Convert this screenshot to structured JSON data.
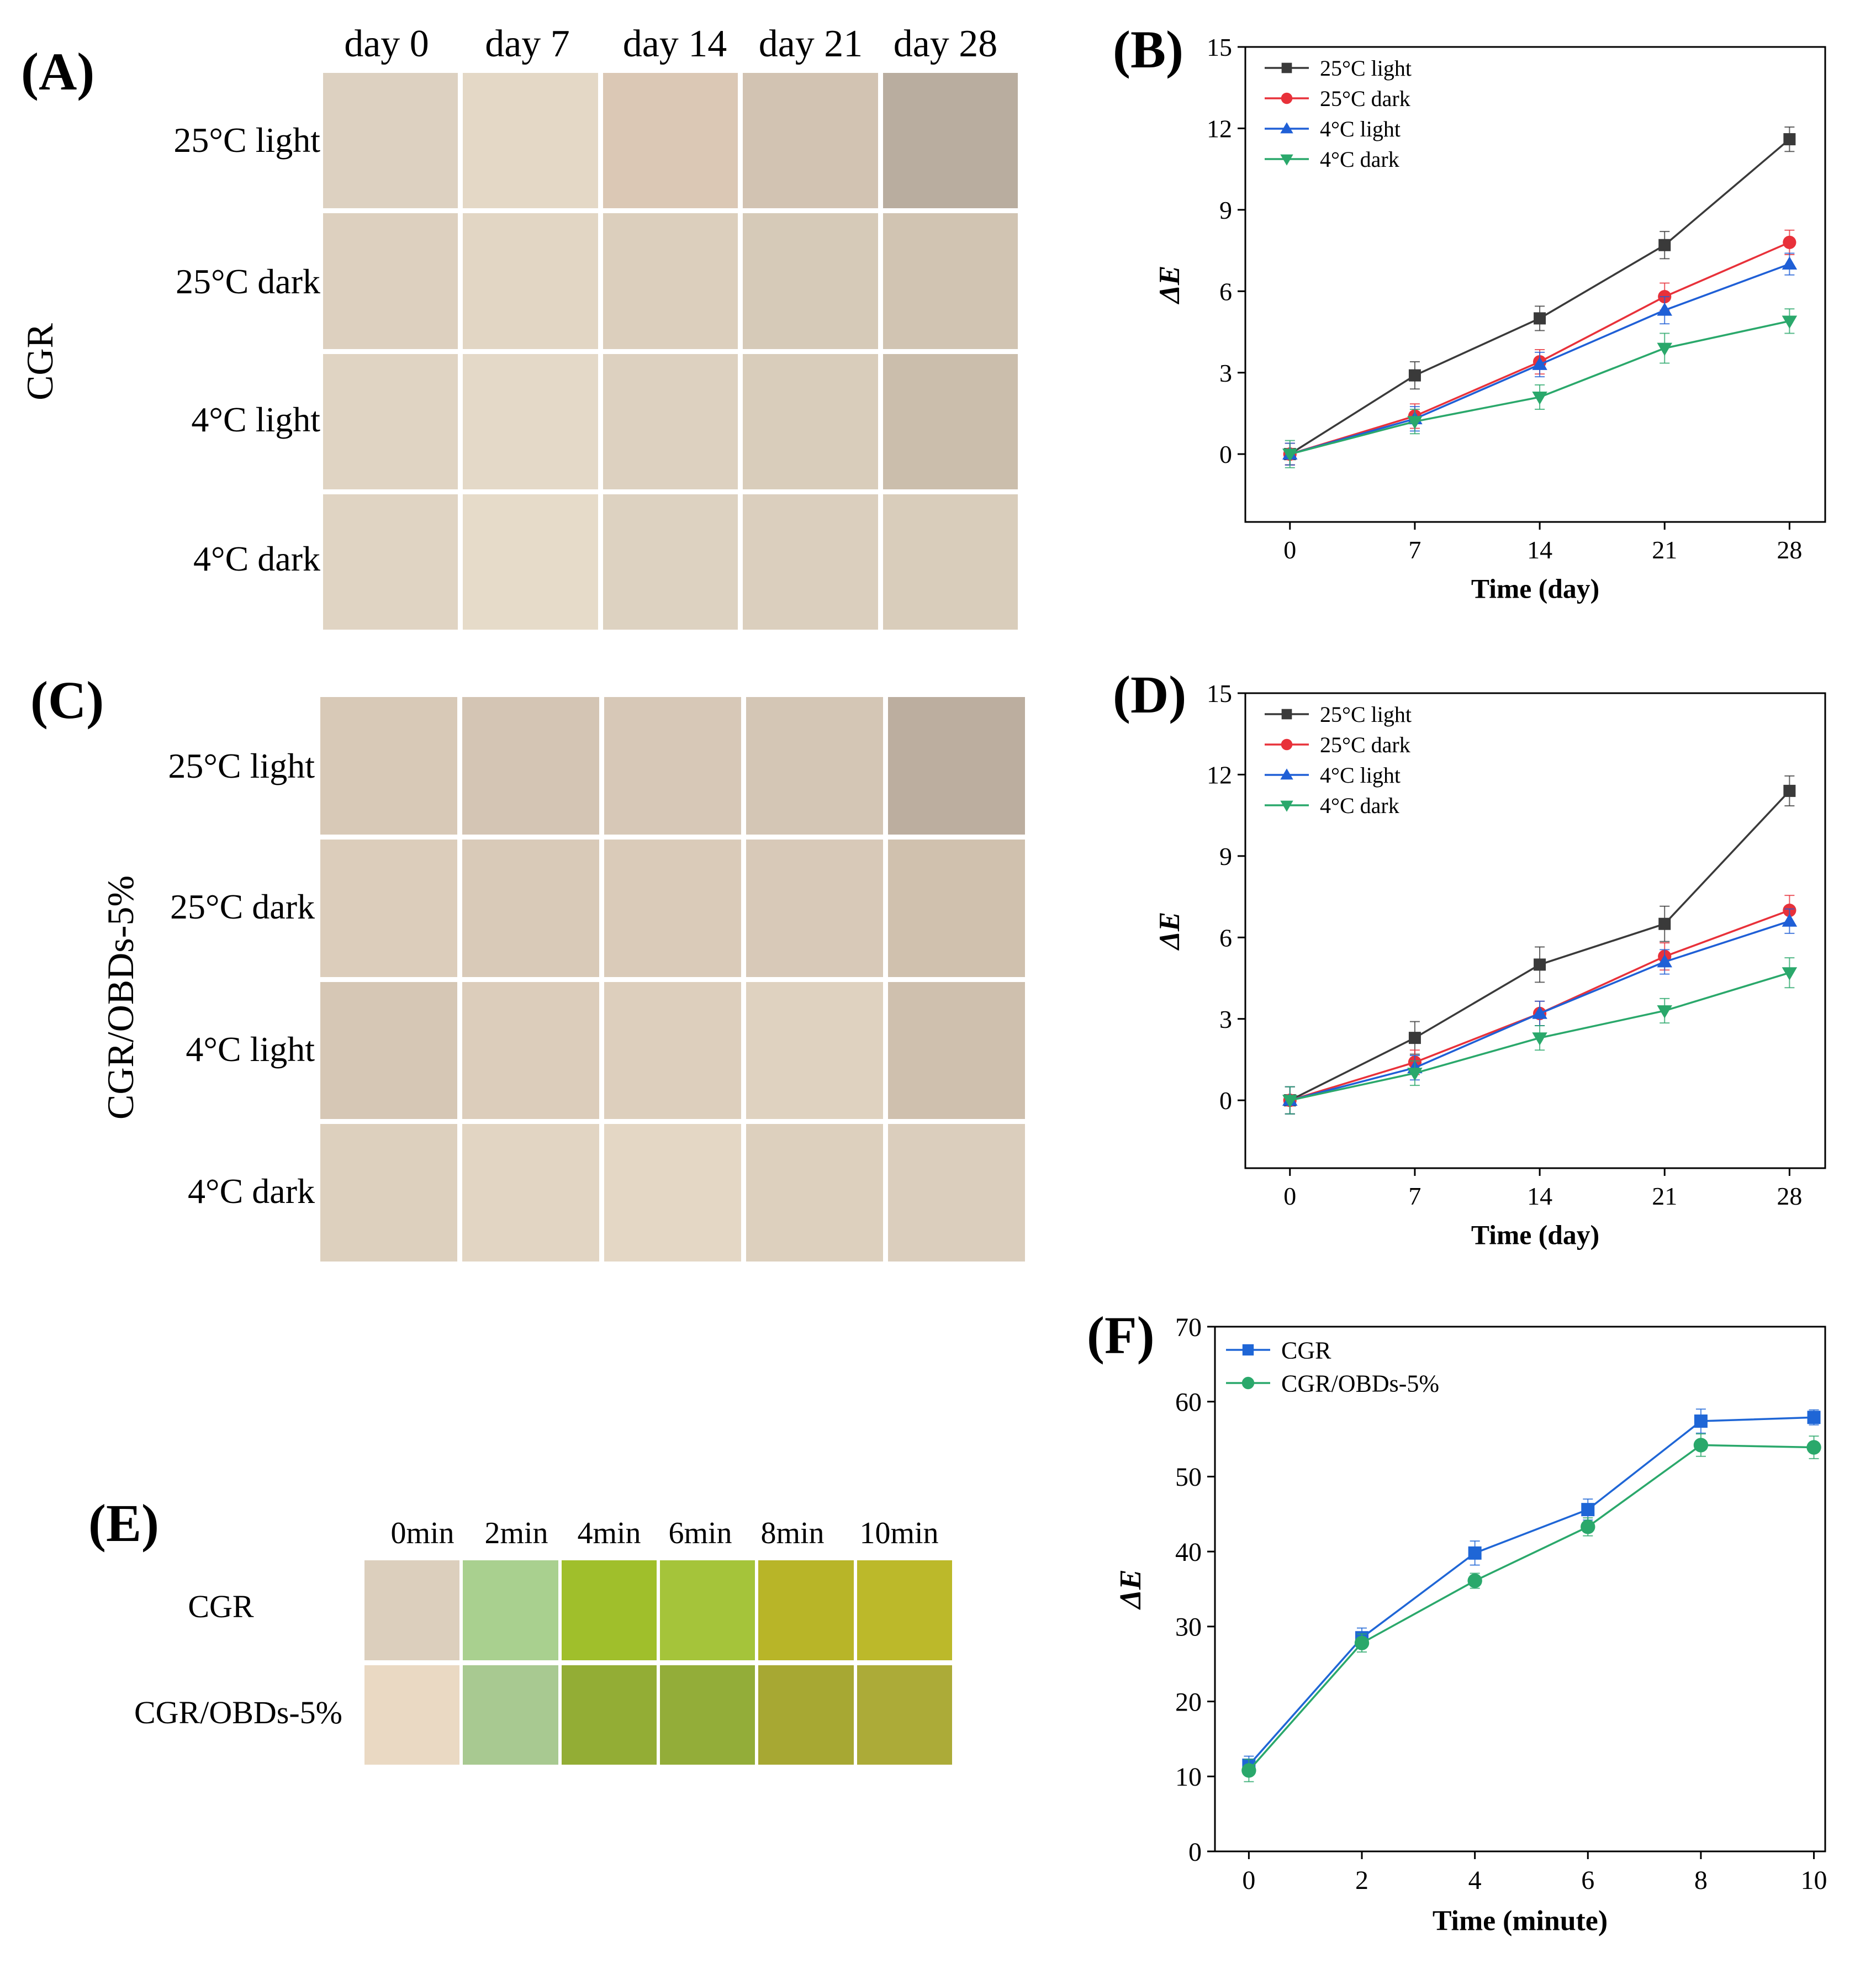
{
  "panels": {
    "A": {
      "label": "(A)",
      "side_label": "CGR",
      "columns": [
        "day 0",
        "day 7",
        "day 14",
        "day 21",
        "day 28"
      ],
      "rows": [
        "25°C light",
        "25°C dark",
        "4°C light",
        "4°C dark"
      ],
      "swatches": [
        [
          "#ddd1c1",
          "#e4d8c6",
          "#dbc8b5",
          "#d2c3b2",
          "#b9ad9f"
        ],
        [
          "#ddd0bf",
          "#e2d6c4",
          "#dccfbd",
          "#d6cab8",
          "#d1c4b2"
        ],
        [
          "#e0d4c3",
          "#e4d9c8",
          "#ddd1c0",
          "#d9cdbb",
          "#cbbeac"
        ],
        [
          "#e0d4c3",
          "#e6dbc9",
          "#ddd2c1",
          "#dbcfbe",
          "#d9cdbb"
        ]
      ]
    },
    "C": {
      "label": "(C)",
      "side_label": "CGR/OBDs-5%",
      "rows": [
        "25°C light",
        "25°C dark",
        "4°C light",
        "4°C dark"
      ],
      "swatches": [
        [
          "#d8c9b7",
          "#d4c5b4",
          "#d7c8b7",
          "#d4c6b5",
          "#bcae9f"
        ],
        [
          "#dccdbb",
          "#d9cab8",
          "#dacbb9",
          "#d8c9b8",
          "#d0c1ae"
        ],
        [
          "#d6c7b5",
          "#dccdbb",
          "#ddcfbd",
          "#dfd2c0",
          "#cfc0ae"
        ],
        [
          "#ddd0be",
          "#e2d5c3",
          "#e4d7c5",
          "#ddd0be",
          "#dbcebd"
        ]
      ]
    },
    "E": {
      "label": "(E)",
      "columns": [
        "0min",
        "2min",
        "4min",
        "6min",
        "8min",
        "10min"
      ],
      "rows": [
        "CGR",
        "CGR/OBDs-5%"
      ],
      "swatches": [
        [
          "#dccfbd",
          "#a9d08f",
          "#a0bf2b",
          "#a5c43a",
          "#b8b528",
          "#bcb92a"
        ],
        [
          "#ead9c3",
          "#a8c991",
          "#93ad35",
          "#93ad39",
          "#a7a833",
          "#acab38"
        ]
      ]
    },
    "B": {
      "label": "(B)"
    },
    "D": {
      "label": "(D)"
    },
    "F": {
      "label": "(F)"
    }
  },
  "chart_data": [
    {
      "id": "B",
      "type": "line",
      "title": "",
      "xlabel": "Time (day)",
      "ylabel": "ΔE",
      "x": [
        0,
        7,
        14,
        21,
        28
      ],
      "xticks": [
        "0",
        "7",
        "14",
        "21",
        "28"
      ],
      "xlim": [
        -2.5,
        30
      ],
      "yticks": [
        "0",
        "3",
        "6",
        "9",
        "12",
        "15"
      ],
      "ylim": [
        -2.5,
        15
      ],
      "ytick_values": [
        0,
        3,
        6,
        9,
        12,
        15
      ],
      "xtick_values": [
        0,
        7,
        14,
        21,
        28
      ],
      "legend_position": "top-left",
      "series": [
        {
          "name": "25°C light",
          "color": "#3a3a3a",
          "marker": "square",
          "values": [
            0,
            2.9,
            5.0,
            7.7,
            11.6
          ],
          "errors": [
            0.4,
            0.5,
            0.45,
            0.5,
            0.45
          ]
        },
        {
          "name": "25°C dark",
          "color": "#e8313a",
          "marker": "circle",
          "values": [
            0,
            1.4,
            3.4,
            5.8,
            7.8
          ],
          "errors": [
            0.4,
            0.45,
            0.45,
            0.5,
            0.45
          ]
        },
        {
          "name": "4°C light",
          "color": "#1f5fd6",
          "marker": "triangle-up",
          "values": [
            0,
            1.3,
            3.3,
            5.3,
            7.0
          ],
          "errors": [
            0.4,
            0.45,
            0.45,
            0.5,
            0.4
          ]
        },
        {
          "name": "4°C dark",
          "color": "#2aa86b",
          "marker": "triangle-down",
          "values": [
            0,
            1.2,
            2.1,
            3.9,
            4.9
          ],
          "errors": [
            0.5,
            0.45,
            0.45,
            0.55,
            0.45
          ]
        }
      ]
    },
    {
      "id": "D",
      "type": "line",
      "title": "",
      "xlabel": "Time (day)",
      "ylabel": "ΔE",
      "x": [
        0,
        7,
        14,
        21,
        28
      ],
      "xticks": [
        "0",
        "7",
        "14",
        "21",
        "28"
      ],
      "xlim": [
        -2.5,
        30
      ],
      "yticks": [
        "0",
        "3",
        "6",
        "9",
        "12",
        "15"
      ],
      "ylim": [
        -2.5,
        15
      ],
      "ytick_values": [
        0,
        3,
        6,
        9,
        12,
        15
      ],
      "xtick_values": [
        0,
        7,
        14,
        21,
        28
      ],
      "legend_position": "top-left",
      "series": [
        {
          "name": "25°C light",
          "color": "#3a3a3a",
          "marker": "square",
          "values": [
            0,
            2.3,
            5.0,
            6.5,
            11.4
          ],
          "errors": [
            0.5,
            0.6,
            0.65,
            0.65,
            0.55
          ]
        },
        {
          "name": "25°C dark",
          "color": "#e8313a",
          "marker": "circle",
          "values": [
            0,
            1.4,
            3.2,
            5.3,
            7.0
          ],
          "errors": [
            0.5,
            0.45,
            0.45,
            0.5,
            0.55
          ]
        },
        {
          "name": "4°C light",
          "color": "#1f5fd6",
          "marker": "triangle-up",
          "values": [
            0,
            1.2,
            3.2,
            5.1,
            6.6
          ],
          "errors": [
            0.5,
            0.45,
            0.45,
            0.45,
            0.45
          ]
        },
        {
          "name": "4°C dark",
          "color": "#2aa86b",
          "marker": "triangle-down",
          "values": [
            0,
            1.0,
            2.3,
            3.3,
            4.7
          ],
          "errors": [
            0.5,
            0.45,
            0.45,
            0.45,
            0.55
          ]
        }
      ]
    },
    {
      "id": "F",
      "type": "line",
      "title": "",
      "xlabel": "Time (minute)",
      "ylabel": "ΔE",
      "x": [
        0,
        2,
        4,
        6,
        8,
        10
      ],
      "xticks": [
        "0",
        "2",
        "4",
        "6",
        "8",
        "10"
      ],
      "xlim": [
        -0.6,
        10.2
      ],
      "yticks": [
        "0",
        "10",
        "20",
        "30",
        "40",
        "50",
        "60",
        "70"
      ],
      "ylim": [
        0,
        70
      ],
      "ytick_values": [
        0,
        10,
        20,
        30,
        40,
        50,
        60,
        70
      ],
      "xtick_values": [
        0,
        2,
        4,
        6,
        8,
        10
      ],
      "legend_position": "top-left",
      "series": [
        {
          "name": "CGR",
          "color": "#1f66d6",
          "marker": "square",
          "values": [
            11.5,
            28.5,
            39.8,
            45.6,
            57.4,
            57.9
          ],
          "errors": [
            1.2,
            1.3,
            1.6,
            1.4,
            1.6,
            1.0
          ]
        },
        {
          "name": "CGR/OBDs-5%",
          "color": "#2aa86b",
          "marker": "circle",
          "values": [
            10.8,
            27.8,
            36.1,
            43.3,
            54.2,
            53.9
          ],
          "errors": [
            1.5,
            1.2,
            1.0,
            1.2,
            1.5,
            1.5
          ]
        }
      ]
    }
  ]
}
